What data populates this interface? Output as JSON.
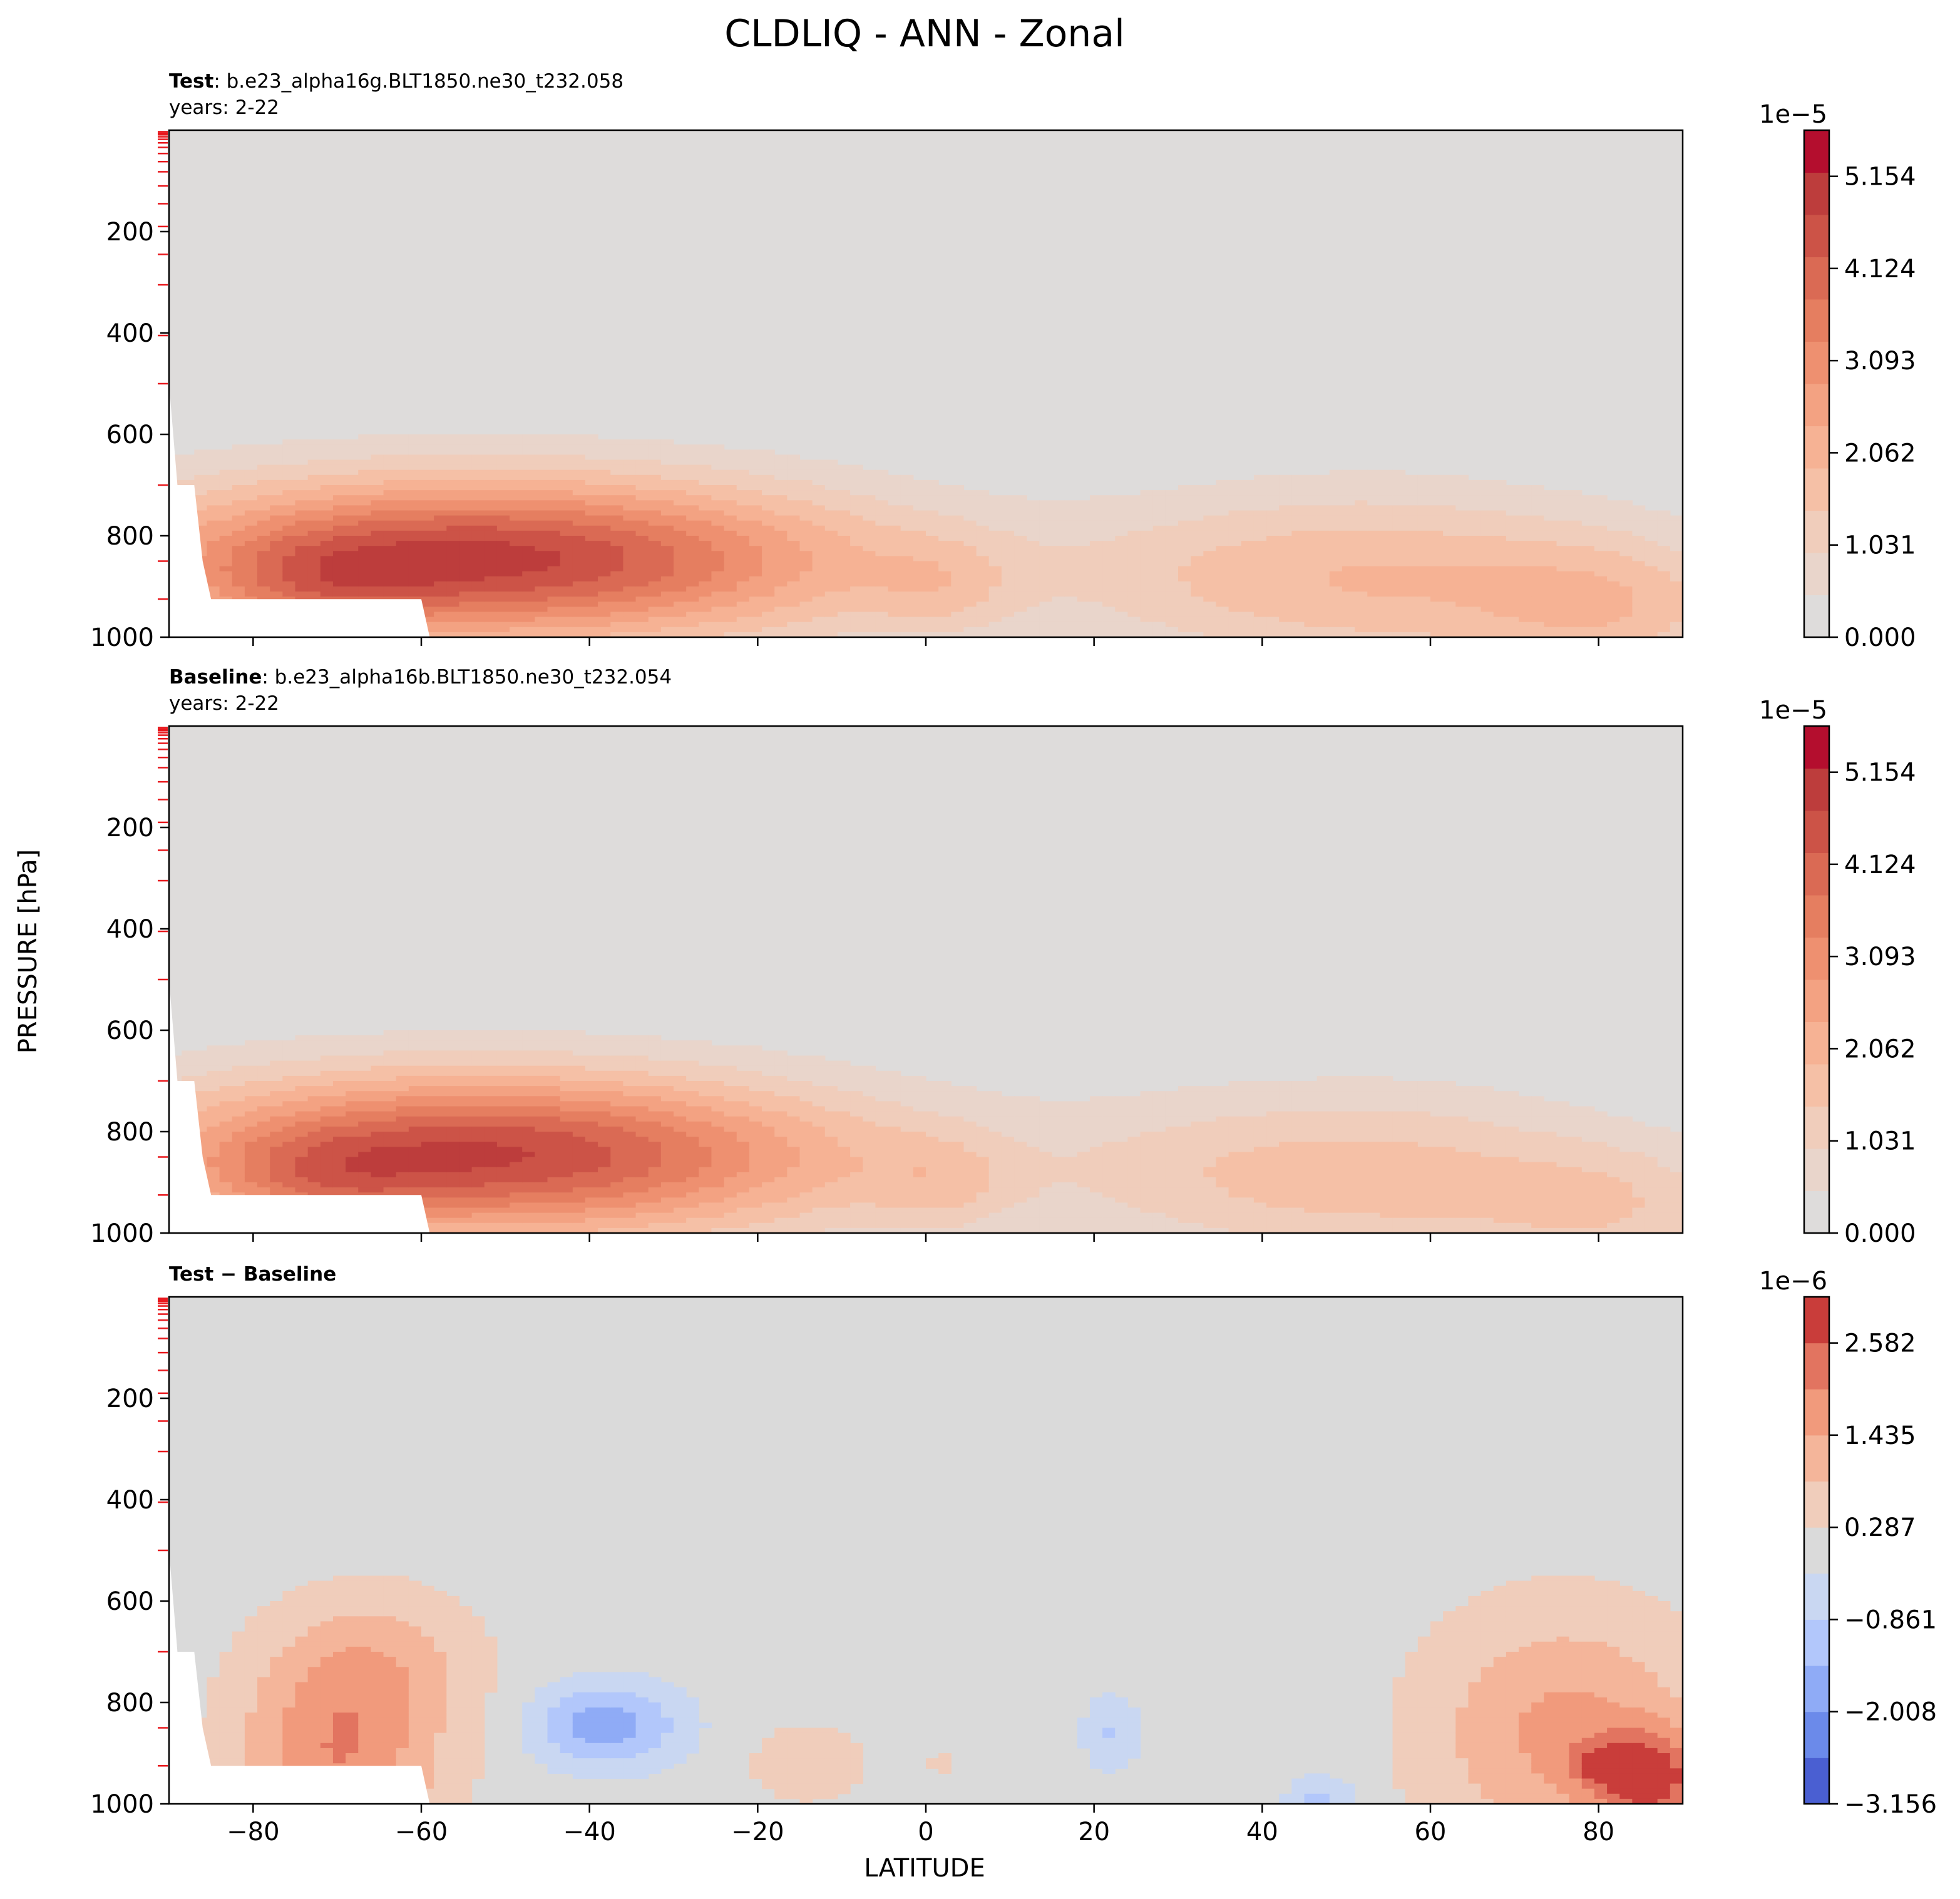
{
  "title": "CLDLIQ - ANN - Zonal",
  "ylabel": "PRESSURE [hPa]",
  "xlabel": "LATITUDE",
  "chart_data": [
    {
      "type": "heatmap",
      "panel": "test",
      "label_bold": "Test",
      "label_rest": ": b.e23_alpha16g.BLT1850.ne30_t232.058",
      "years": "years: 2-22",
      "xlim": [
        -90,
        90
      ],
      "ylim": [
        1000,
        0
      ],
      "yticks": [
        "200",
        "400",
        "600",
        "800",
        "1000"
      ],
      "yticks_values": [
        200,
        400,
        600,
        800,
        1000
      ],
      "xticks_values": [
        -80,
        -60,
        -40,
        -20,
        0,
        20,
        40,
        60,
        80
      ],
      "colorbar": {
        "offset_text": "1e−5",
        "tick_labels": [
          "5.154",
          "4.124",
          "3.093",
          "2.062",
          "1.031",
          "0.000"
        ],
        "tick_values": [
          5.154,
          4.124,
          3.093,
          2.062,
          1.031,
          0.0
        ],
        "min": 0.0,
        "max": 5.67,
        "colors": [
          "#dedcdb",
          "#e9d5cb",
          "#f0cdbb",
          "#f5c0a6",
          "#f6b294",
          "#f3a282",
          "#ee9070",
          "#e57e60",
          "#da6a54",
          "#cc5347",
          "#bd3d3c",
          "#b40e2e"
        ]
      },
      "blobs": [
        {
          "lat": -55,
          "p": 845,
          "rlat": 62,
          "rp": 240,
          "amp": 4.5
        },
        {
          "lat": -72,
          "p": 900,
          "rlat": 20,
          "rp": 150,
          "amp": 1.0
        },
        {
          "lat": -25,
          "p": 860,
          "rlat": 55,
          "rp": 230,
          "amp": 0.7
        },
        {
          "lat": 2,
          "p": 905,
          "rlat": 13,
          "rp": 150,
          "amp": 0.8
        },
        {
          "lat": 55,
          "p": 885,
          "rlat": 38,
          "rp": 270,
          "amp": 1.7
        },
        {
          "lat": 82,
          "p": 940,
          "rlat": 25,
          "rp": 220,
          "amp": 1.5
        },
        {
          "lat": 30,
          "p": 880,
          "rlat": 30,
          "rp": 230,
          "amp": 0.6
        }
      ]
    },
    {
      "type": "heatmap",
      "panel": "baseline",
      "label_bold": "Baseline",
      "label_rest": ": b.e23_alpha16b.BLT1850.ne30_t232.054",
      "years": "years: 2-22",
      "xlim": [
        -90,
        90
      ],
      "ylim": [
        1000,
        0
      ],
      "yticks": [
        "200",
        "400",
        "600",
        "800",
        "1000"
      ],
      "yticks_values": [
        200,
        400,
        600,
        800,
        1000
      ],
      "xticks_values": [
        -80,
        -60,
        -40,
        -20,
        0,
        20,
        40,
        60,
        80
      ],
      "colorbar": {
        "offset_text": "1e−5",
        "tick_labels": [
          "5.154",
          "4.124",
          "3.093",
          "2.062",
          "1.031",
          "0.000"
        ],
        "tick_values": [
          5.154,
          4.124,
          3.093,
          2.062,
          1.031,
          0.0
        ],
        "min": 0.0,
        "max": 5.67,
        "colors": [
          "#dedcdb",
          "#e9d5cb",
          "#f0cdbb",
          "#f5c0a6",
          "#f6b294",
          "#f3a282",
          "#ee9070",
          "#e57e60",
          "#da6a54",
          "#cc5347",
          "#bd3d3c",
          "#b40e2e"
        ]
      },
      "blobs": [
        {
          "lat": -55,
          "p": 845,
          "rlat": 60,
          "rp": 240,
          "amp": 4.4
        },
        {
          "lat": -72,
          "p": 900,
          "rlat": 18,
          "rp": 140,
          "amp": 0.9
        },
        {
          "lat": -25,
          "p": 860,
          "rlat": 55,
          "rp": 230,
          "amp": 0.7
        },
        {
          "lat": 2,
          "p": 905,
          "rlat": 13,
          "rp": 150,
          "amp": 0.8
        },
        {
          "lat": 55,
          "p": 890,
          "rlat": 38,
          "rp": 260,
          "amp": 1.5
        },
        {
          "lat": 82,
          "p": 950,
          "rlat": 24,
          "rp": 200,
          "amp": 1.1
        },
        {
          "lat": 30,
          "p": 880,
          "rlat": 30,
          "rp": 230,
          "amp": 0.6
        }
      ]
    },
    {
      "type": "heatmap",
      "panel": "difference",
      "label_bold": "Test − Baseline",
      "label_rest": "",
      "years": "",
      "xlim": [
        -90,
        90
      ],
      "ylim": [
        1000,
        0
      ],
      "yticks": [
        "200",
        "400",
        "600",
        "800",
        "1000"
      ],
      "yticks_values": [
        200,
        400,
        600,
        800,
        1000
      ],
      "xticks": [
        "−80",
        "−60",
        "−40",
        "−20",
        "0",
        "20",
        "40",
        "60",
        "80"
      ],
      "xticks_values": [
        -80,
        -60,
        -40,
        -20,
        0,
        20,
        40,
        60,
        80
      ],
      "colorbar": {
        "offset_text": "1e−6",
        "tick_labels": [
          "2.582",
          "1.435",
          "0.287",
          "−0.861",
          "−2.008",
          "−3.156"
        ],
        "tick_values": [
          2.582,
          1.435,
          0.287,
          -0.861,
          -2.008,
          -3.156
        ],
        "min": -3.156,
        "max": 3.156,
        "colors": [
          "#4a5fd2",
          "#6b8aea",
          "#8fabf6",
          "#b2c7fb",
          "#c9d7f2",
          "#dadada",
          "#f0cdbb",
          "#f4b59a",
          "#f19a7c",
          "#e27460",
          "#c93d3a"
        ]
      },
      "blobs": [
        {
          "lat": -70,
          "p": 920,
          "rlat": 18,
          "rp": 320,
          "amp": 1.9
        },
        {
          "lat": -65,
          "p": 720,
          "rlat": 18,
          "rp": 210,
          "amp": 0.9
        },
        {
          "lat": -38,
          "p": 845,
          "rlat": 13,
          "rp": 120,
          "amp": -1.8
        },
        {
          "lat": -14,
          "p": 920,
          "rlat": 10,
          "rp": 110,
          "amp": 0.8
        },
        {
          "lat": 22,
          "p": 860,
          "rlat": 5,
          "rp": 110,
          "amp": -0.9
        },
        {
          "lat": 2,
          "p": 920,
          "rlat": 3,
          "rp": 40,
          "amp": 0.5
        },
        {
          "lat": 47,
          "p": 990,
          "rlat": 6,
          "rp": 70,
          "amp": -1.0
        },
        {
          "lat": 76,
          "p": 860,
          "rlat": 24,
          "rp": 350,
          "amp": 1.6
        },
        {
          "lat": 86,
          "p": 950,
          "rlat": 10,
          "rp": 140,
          "amp": 2.4
        },
        {
          "lat": 80,
          "p": 920,
          "rlat": 5,
          "rp": 50,
          "amp": 1.0
        }
      ]
    }
  ]
}
